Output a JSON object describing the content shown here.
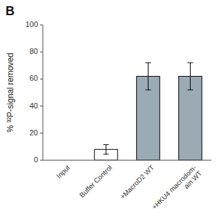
{
  "chart_data": {
    "type": "bar",
    "title": "B",
    "ylabel": "% ³²P-signal removed",
    "categories": [
      "Input",
      "Buffer Control",
      "+MacroD2 WT",
      "+HKU4 macrodom-\nain WT"
    ],
    "values": [
      0,
      8,
      62,
      62
    ],
    "errors": [
      0,
      3.5,
      10,
      10
    ],
    "colors": [
      "white",
      "white",
      "#9aabb5",
      "#9aabb5"
    ],
    "ylim": [
      0,
      100
    ],
    "yticks": [
      0,
      20,
      40,
      60,
      80,
      100
    ],
    "grid": false
  }
}
